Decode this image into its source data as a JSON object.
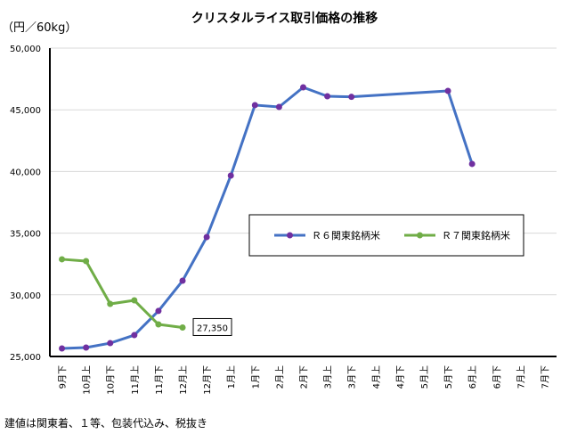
{
  "chart_data": {
    "type": "line",
    "title": "クリスタルライス取引価格の推移",
    "ylabel": "（円／60kg）",
    "ylim": [
      25000,
      50000
    ],
    "yticks": [
      "25,000",
      "30,000",
      "35,000",
      "40,000",
      "45,000",
      "50,000"
    ],
    "categories": [
      "9月下",
      "10月上",
      "10月下",
      "11月上",
      "11月下",
      "12月上",
      "12月下",
      "1月上",
      "1月下",
      "2月上",
      "2月下",
      "3月上",
      "3月下",
      "4月上",
      "4月下",
      "5月上",
      "5月下",
      "6月上",
      "6月下",
      "7月上",
      "7月下"
    ],
    "series": [
      {
        "name": "Ｒ６関東銘柄米",
        "color": "#4472C4",
        "marker": "#7030A0",
        "values": [
          25650,
          25720,
          26080,
          26730,
          28690,
          31140,
          34680,
          39670,
          45380,
          45230,
          46820,
          46100,
          46050,
          null,
          null,
          null,
          46530,
          40610,
          null,
          null,
          null
        ]
      },
      {
        "name": "Ｒ７関東銘柄米",
        "color": "#70AD47",
        "marker": "#70AD47",
        "values": [
          32880,
          32730,
          29260,
          29550,
          27600,
          27350,
          null,
          null,
          null,
          null,
          null,
          null,
          null,
          null,
          null,
          null,
          null,
          null,
          null,
          null,
          null
        ]
      }
    ],
    "annotation": "27,350",
    "grid": true,
    "legend": "center-right"
  },
  "footnote": "建値は関東着、１等、包装代込み、税抜き"
}
